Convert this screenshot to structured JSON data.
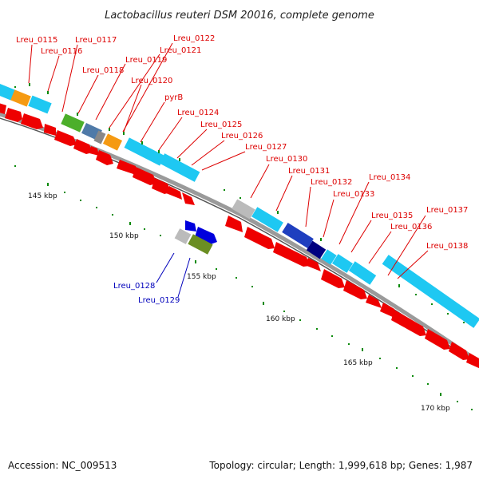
{
  "title": "Lactobacillus reuteri DSM 20016, complete genome",
  "footer": {
    "accession": "Accession: NC_009513",
    "topology": "Topology: circular; Length: 1,999,618 bp; Genes: 1,987"
  },
  "colors": {
    "forward_cds": "#1ec8f2",
    "reverse_cds": "#ee0000",
    "label_forward": "#dd0000",
    "label_other": "#0000bb",
    "gc_tick": "#0a8a0a",
    "axis": "#888888"
  },
  "scale_labels": [
    "145 kbp",
    "150 kbp",
    "155 kbp",
    "160 kbp",
    "165 kbp",
    "170 kbp"
  ],
  "gene_labels_top": [
    "Lreu_0115",
    "Lreu_0116",
    "Lreu_0117",
    "Lreu_0118",
    "Lreu_0119",
    "Lreu_0120",
    "Lreu_0121",
    "Lreu_0122",
    "pyrB",
    "Lreu_0124",
    "Lreu_0125",
    "Lreu_0126",
    "Lreu_0127",
    "Lreu_0130",
    "Lreu_0131",
    "Lreu_0132",
    "Lreu_0133",
    "Lreu_0134",
    "Lreu_0135",
    "Lreu_0136",
    "Lreu_0137",
    "Lreu_0138"
  ],
  "gene_labels_bottom": [
    "Lreu_0128",
    "Lreu_0129"
  ]
}
